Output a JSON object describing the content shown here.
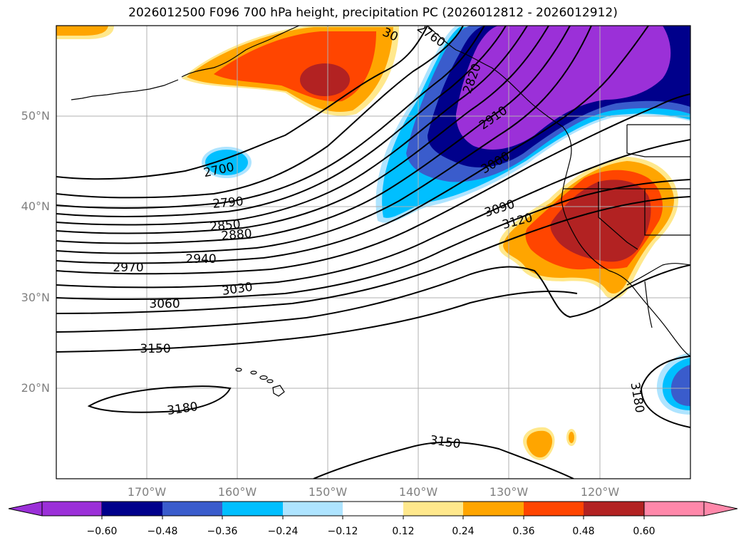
{
  "title": "2026012500 F096 700 hPa height, precipitation PC (2026012812 - 2026012912)",
  "lat_labels": [
    "50°N",
    "40°N",
    "30°N",
    "20°N"
  ],
  "lon_labels": [
    "170°W",
    "160°W",
    "150°W",
    "140°W",
    "130°W",
    "120°W"
  ],
  "colorbar": {
    "tick_labels": [
      "−0.60",
      "−0.48",
      "−0.36",
      "−0.24",
      "−0.12",
      "0.12",
      "0.24",
      "0.36",
      "0.48",
      "0.60"
    ],
    "colors": [
      "#9b30d8",
      "#00008b",
      "#3a5ccc",
      "#00bfff",
      "#aee4ff",
      "#ffffff",
      "#ffe88c",
      "#ffa500",
      "#ff4500",
      "#b22222",
      "#ff88aa"
    ]
  },
  "contour_labels": [
    "2760",
    "2820",
    "2910",
    "3000",
    "2700",
    "2790",
    "2850",
    "2880",
    "2940",
    "2970",
    "3030",
    "3060",
    "3090",
    "3120",
    "3150",
    "3150",
    "3180",
    "3180",
    "30"
  ],
  "map_extent": {
    "lon": [
      -180,
      -110
    ],
    "lat": [
      10,
      60
    ]
  }
}
